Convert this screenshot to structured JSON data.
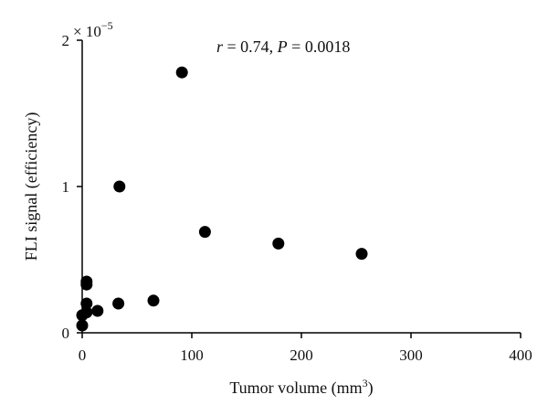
{
  "chart_data": {
    "type": "scatter",
    "title": "",
    "xlabel": "Tumor volume (mm",
    "xlabel_sup": "3",
    "xlabel_end": ")",
    "ylabel": "FLI signal (efficiency)",
    "y_scale_prefix": "× 10",
    "y_scale_exp": "−5",
    "annotation": {
      "r_label": "r",
      "r_value": " = 0.74, ",
      "p_label": "P",
      "p_value": " = 0.0018"
    },
    "xlim": [
      0,
      400
    ],
    "ylim": [
      0,
      2
    ],
    "x_ticks": [
      0,
      100,
      200,
      300,
      400
    ],
    "y_ticks": [
      0,
      1,
      2
    ],
    "marker_color": "#000000",
    "grid": false,
    "points": [
      {
        "x": 0,
        "y": 0.05
      },
      {
        "x": 0,
        "y": 0.12
      },
      {
        "x": 4,
        "y": 0.14
      },
      {
        "x": 4,
        "y": 0.2
      },
      {
        "x": 4,
        "y": 0.33
      },
      {
        "x": 4,
        "y": 0.35
      },
      {
        "x": 14,
        "y": 0.15
      },
      {
        "x": 33,
        "y": 0.2
      },
      {
        "x": 34,
        "y": 1.0
      },
      {
        "x": 65,
        "y": 0.22
      },
      {
        "x": 91,
        "y": 1.78
      },
      {
        "x": 112,
        "y": 0.69
      },
      {
        "x": 179,
        "y": 0.61
      },
      {
        "x": 255,
        "y": 0.54
      }
    ]
  }
}
